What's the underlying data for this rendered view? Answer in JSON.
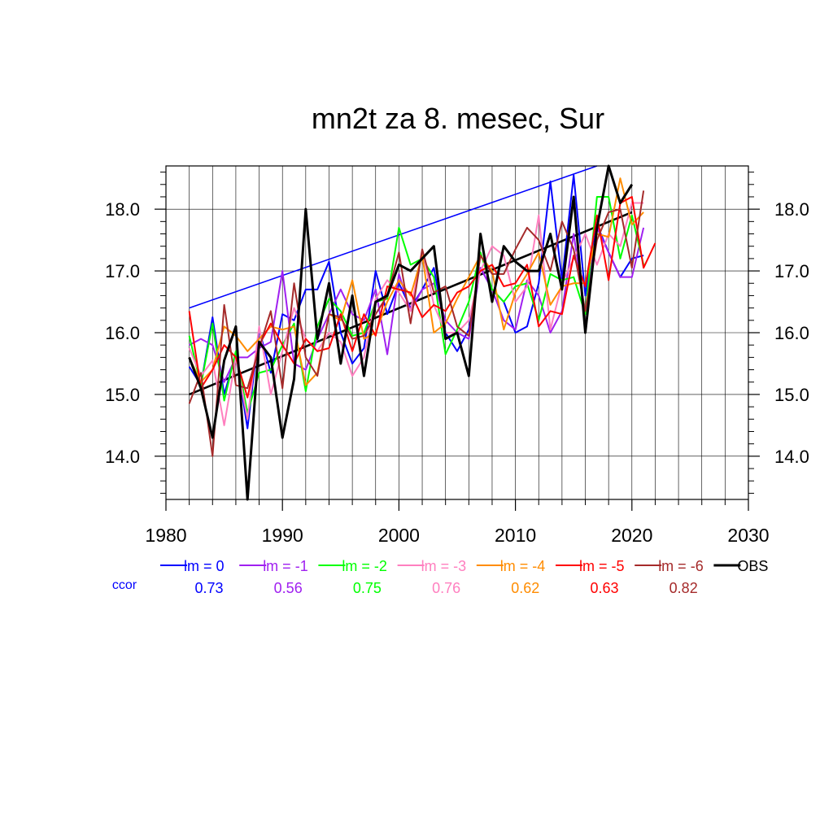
{
  "chart_data": {
    "type": "line",
    "title": "mn2t za 8. mesec, Sur",
    "xlabel": "",
    "ylabel": "",
    "xlim": [
      1980,
      2030
    ],
    "ylim": [
      13.3,
      18.7
    ],
    "grid": true,
    "x_ticks": [
      1980,
      1990,
      2000,
      2010,
      2020,
      2030
    ],
    "y_ticks": [
      14.0,
      15.0,
      16.0,
      17.0,
      18.0
    ],
    "x_tick_labels": [
      "1980",
      "1990",
      "2000",
      "2010",
      "2020",
      "2030"
    ],
    "y_tick_labels": [
      "14.0",
      "15.0",
      "16.0",
      "17.0",
      "18.0"
    ],
    "legend_position": "bottom",
    "ccor_label": "ccor",
    "series": [
      {
        "name": "lm = 0",
        "color": "#0000ff",
        "ccor": "0.73",
        "x_start": 1982,
        "values": [
          15.45,
          15.15,
          16.25,
          15.0,
          15.65,
          14.45,
          16.05,
          15.35,
          16.3,
          16.2,
          16.7,
          16.7,
          17.15,
          16.0,
          15.5,
          15.75,
          17.0,
          16.3,
          16.8,
          16.4,
          16.7,
          17.05,
          16.0,
          15.7,
          16.05,
          17.05,
          16.7,
          16.5,
          16.0,
          16.1,
          16.8,
          18.45,
          16.85,
          18.55,
          16.6,
          17.75,
          17.3,
          16.9,
          17.2,
          17.25
        ]
      },
      {
        "name": "lm = -1",
        "color": "#a020f0",
        "ccor": "0.56",
        "x_start": 1982,
        "values": [
          15.8,
          15.9,
          15.8,
          15.2,
          15.6,
          15.6,
          15.75,
          15.85,
          17.0,
          15.5,
          15.4,
          15.9,
          16.3,
          16.7,
          16.3,
          16.2,
          16.7,
          15.65,
          16.95,
          16.35,
          16.7,
          16.8,
          16.2,
          16.0,
          15.9,
          17.05,
          16.7,
          16.2,
          16.05,
          16.85,
          16.6,
          16.0,
          16.35,
          17.6,
          16.3,
          17.7,
          17.3,
          16.9,
          16.9,
          17.7
        ]
      },
      {
        "name": "lm = -2",
        "color": "#00ff00",
        "ccor": "0.75",
        "x_start": 1982,
        "values": [
          15.95,
          15.15,
          16.15,
          14.9,
          15.7,
          14.7,
          15.35,
          15.4,
          15.8,
          16.15,
          15.05,
          16.1,
          16.55,
          16.35,
          15.95,
          16.0,
          16.5,
          16.55,
          17.7,
          17.1,
          17.2,
          16.9,
          15.65,
          16.05,
          16.5,
          17.3,
          16.7,
          16.5,
          16.75,
          16.8,
          16.2,
          16.95,
          16.85,
          16.9,
          16.3,
          18.2,
          18.2,
          17.2,
          17.9,
          17.1
        ]
      },
      {
        "name": "lm = -3",
        "color": "#ff7fbf",
        "ccor": "0.76",
        "x_start": 1982,
        "values": [
          15.75,
          15.3,
          15.55,
          14.5,
          15.6,
          14.6,
          16.1,
          15.0,
          15.7,
          16.4,
          15.9,
          15.7,
          16.0,
          15.85,
          15.3,
          15.6,
          16.55,
          16.85,
          16.65,
          16.35,
          17.35,
          16.45,
          16.0,
          16.0,
          16.2,
          17.0,
          17.4,
          17.25,
          16.5,
          16.75,
          17.9,
          16.05,
          16.8,
          17.2,
          17.6,
          17.1,
          17.6,
          17.4,
          18.1,
          18.1
        ]
      },
      {
        "name": "lm = -4",
        "color": "#ff8c00",
        "ccor": "0.62",
        "x_start": 1982,
        "values": [
          15.6,
          15.2,
          15.4,
          16.1,
          15.95,
          15.7,
          15.9,
          16.1,
          16.05,
          16.1,
          15.15,
          15.35,
          16.3,
          16.2,
          16.85,
          15.9,
          16.0,
          16.5,
          16.85,
          16.6,
          17.25,
          16.0,
          16.15,
          16.55,
          16.9,
          17.25,
          17.0,
          16.05,
          16.65,
          16.95,
          17.3,
          16.45,
          16.75,
          16.8,
          16.8,
          17.6,
          17.55,
          18.5,
          17.75,
          17.95
        ]
      },
      {
        "name": "lm = -5",
        "color": "#ff0000",
        "ccor": "0.63",
        "x_start": 1982,
        "values": [
          16.35,
          15.1,
          15.4,
          15.8,
          15.6,
          14.95,
          15.8,
          16.15,
          15.8,
          15.5,
          15.9,
          15.7,
          15.75,
          16.3,
          15.7,
          16.3,
          15.95,
          16.75,
          16.7,
          16.65,
          16.25,
          16.45,
          16.35,
          16.65,
          16.75,
          17.0,
          17.1,
          16.75,
          16.8,
          17.1,
          16.1,
          16.35,
          16.3,
          17.25,
          16.75,
          17.9,
          16.85,
          18.1,
          18.2,
          17.05,
          17.45
        ]
      },
      {
        "name": "lm = -6",
        "color": "#a52a2a",
        "ccor": "0.82",
        "x_start": 1982,
        "values": [
          14.85,
          15.35,
          14.0,
          16.45,
          15.15,
          15.1,
          15.75,
          16.35,
          15.1,
          16.8,
          15.6,
          15.3,
          16.3,
          16.25,
          15.9,
          15.95,
          16.3,
          16.6,
          17.3,
          16.15,
          17.35,
          16.65,
          16.75,
          16.1,
          15.95,
          17.25,
          16.95,
          16.95,
          17.35,
          17.7,
          17.5,
          17.0,
          17.8,
          17.35,
          16.35,
          17.5,
          17.95,
          18.0,
          17.05,
          18.3
        ]
      },
      {
        "name": "OBS",
        "color": "#000000",
        "ccor": "",
        "x_start": 1982,
        "values": [
          15.6,
          15.1,
          14.3,
          15.55,
          16.1,
          13.3,
          15.85,
          15.6,
          14.3,
          15.25,
          18.0,
          15.9,
          16.8,
          15.5,
          16.6,
          15.3,
          16.5,
          16.6,
          17.1,
          17.0,
          17.2,
          17.4,
          15.9,
          16.0,
          15.3,
          17.6,
          16.5,
          17.4,
          17.15,
          17.0,
          17.0,
          17.6,
          16.7,
          18.2,
          16.0,
          17.7,
          18.7,
          18.1,
          18.4
        ]
      }
    ],
    "trend_lines": [
      {
        "name": "lm = 0 trend",
        "color": "#0000ff",
        "x": [
          1982,
          2017
        ],
        "y": [
          16.4,
          18.7
        ]
      },
      {
        "name": "OBS trend",
        "color": "#000000",
        "x": [
          1982,
          2020
        ],
        "y": [
          15.0,
          17.95
        ]
      }
    ]
  }
}
